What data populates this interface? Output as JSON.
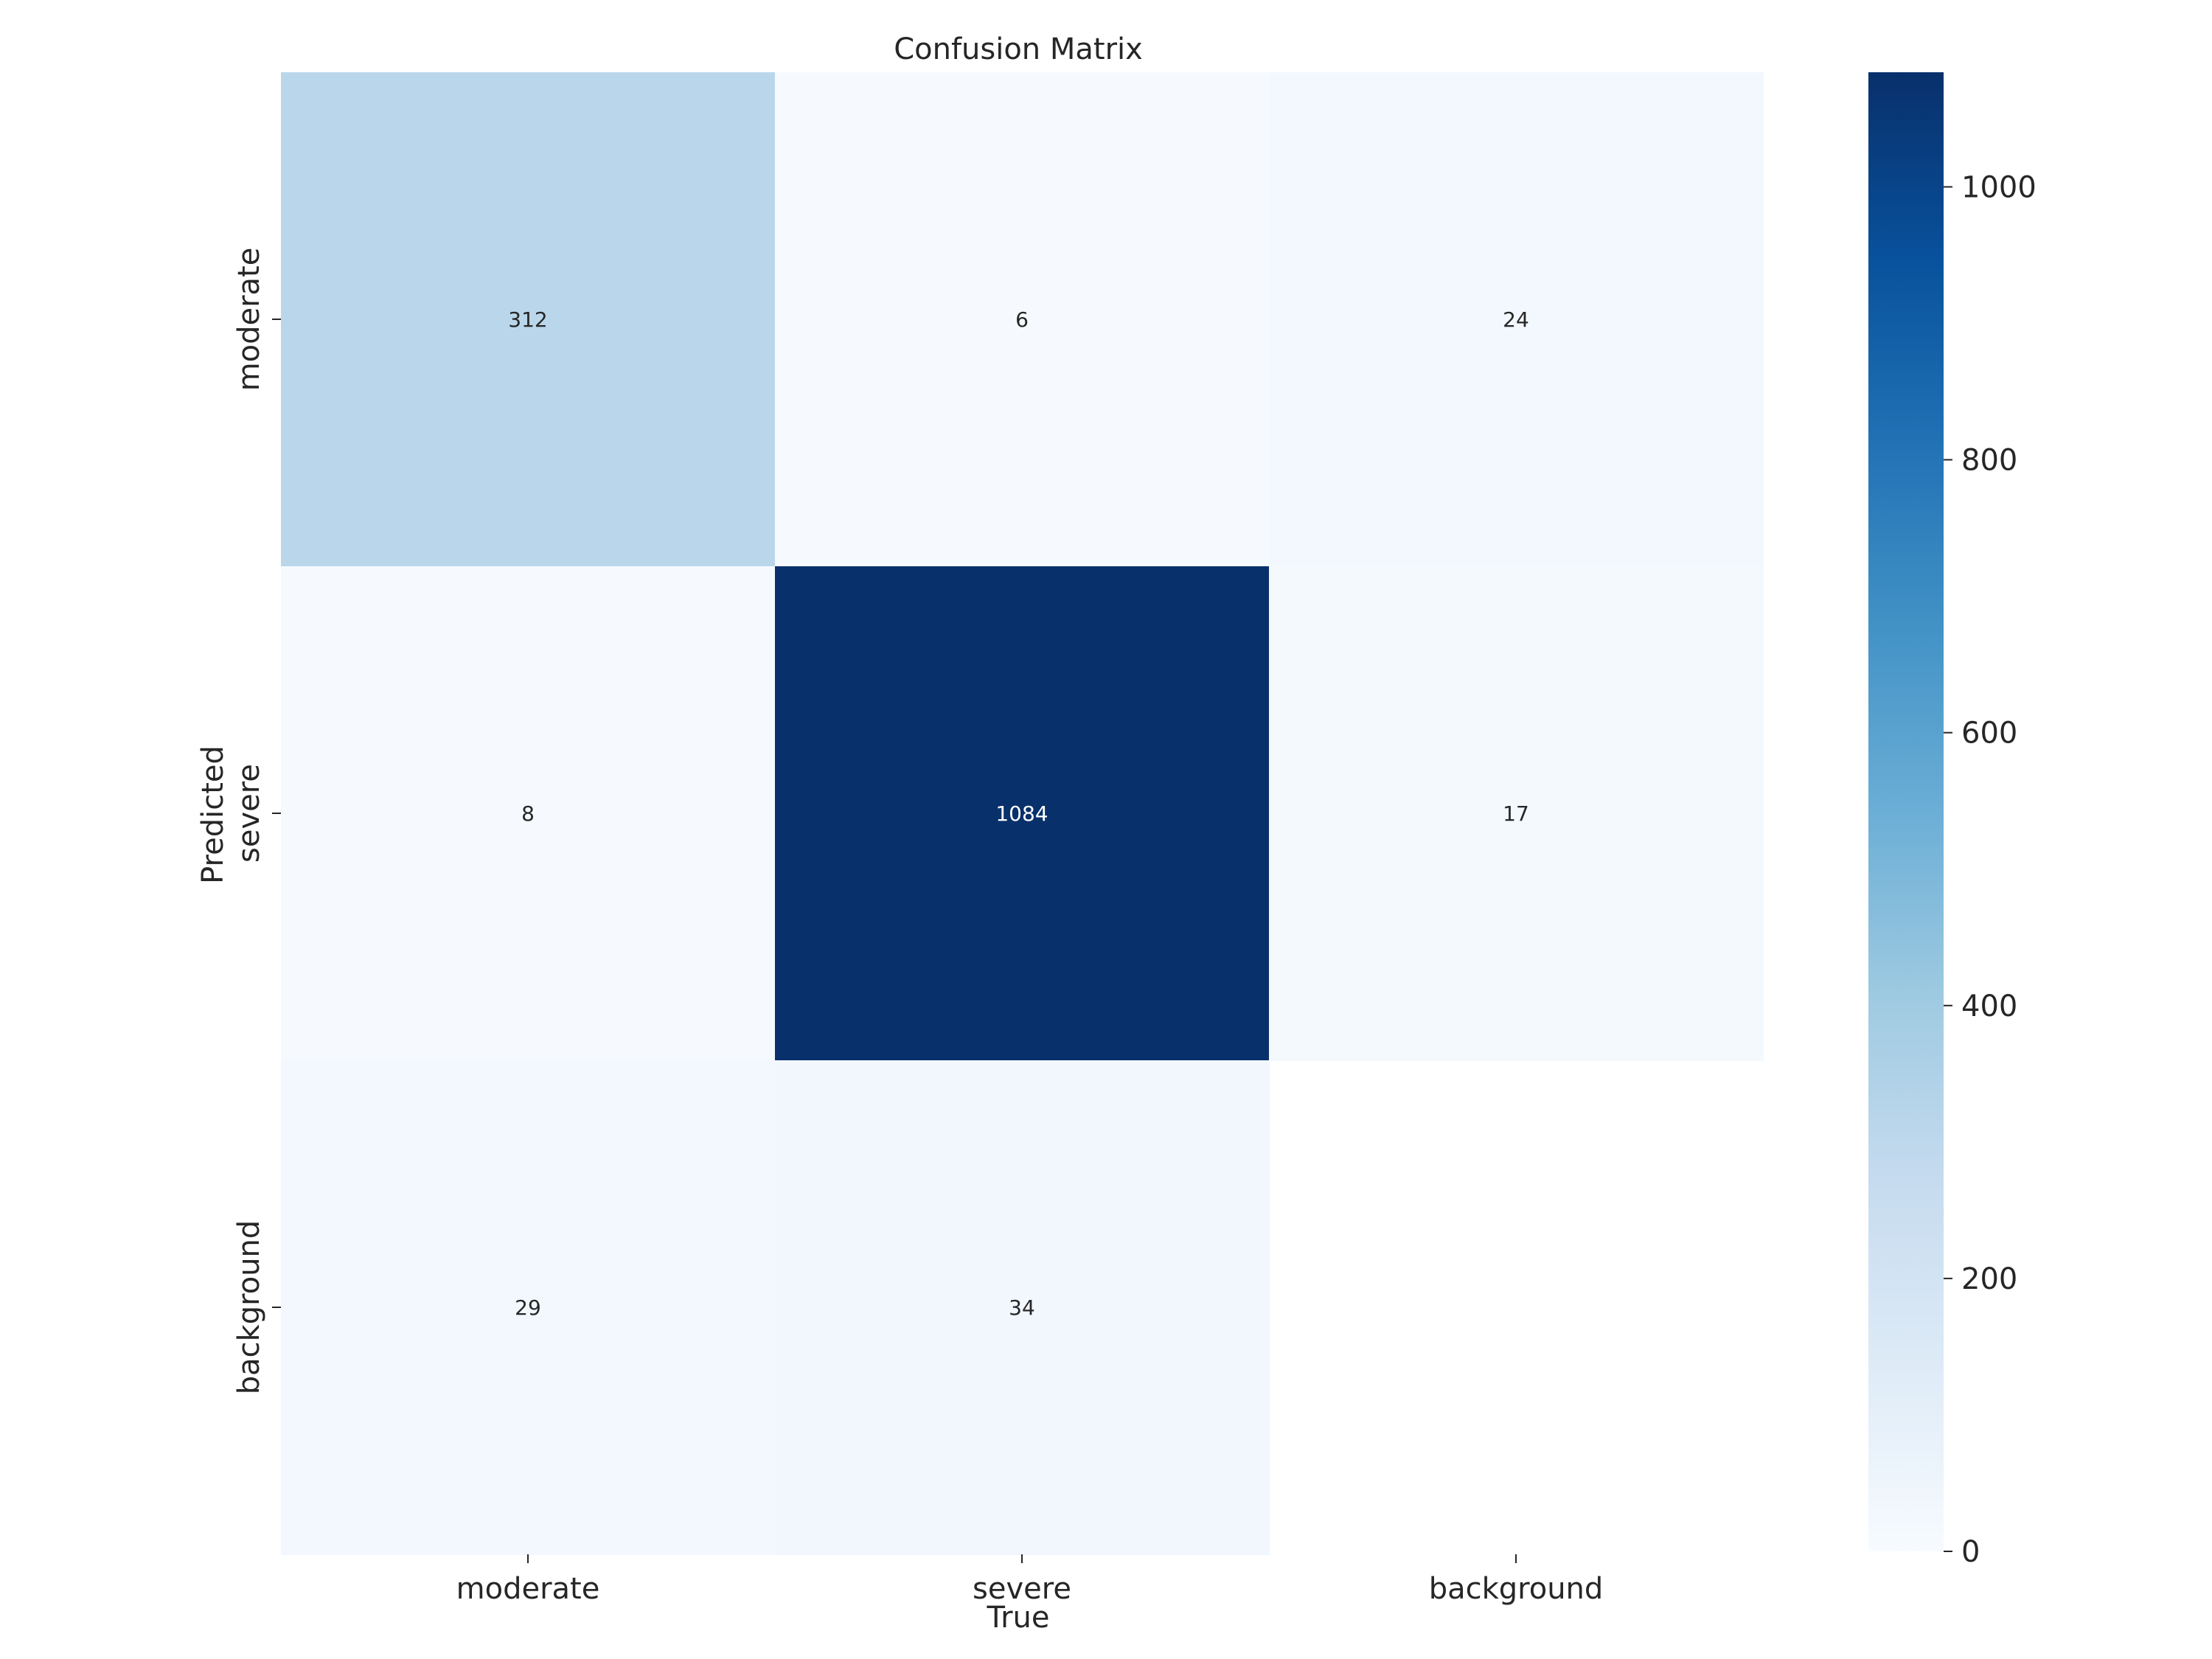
{
  "chart_data": {
    "type": "heatmap",
    "title": "Confusion Matrix",
    "xlabel": "True",
    "ylabel": "Predicted",
    "x_categories": [
      "moderate",
      "severe",
      "background"
    ],
    "y_categories": [
      "moderate",
      "severe",
      "background"
    ],
    "values": [
      [
        312,
        6,
        24
      ],
      [
        8,
        1084,
        17
      ],
      [
        29,
        34,
        null
      ]
    ],
    "colormap": "Blues",
    "colorbar": {
      "range": [
        0,
        1084
      ],
      "ticks": [
        0,
        200,
        400,
        600,
        800,
        1000
      ]
    }
  }
}
